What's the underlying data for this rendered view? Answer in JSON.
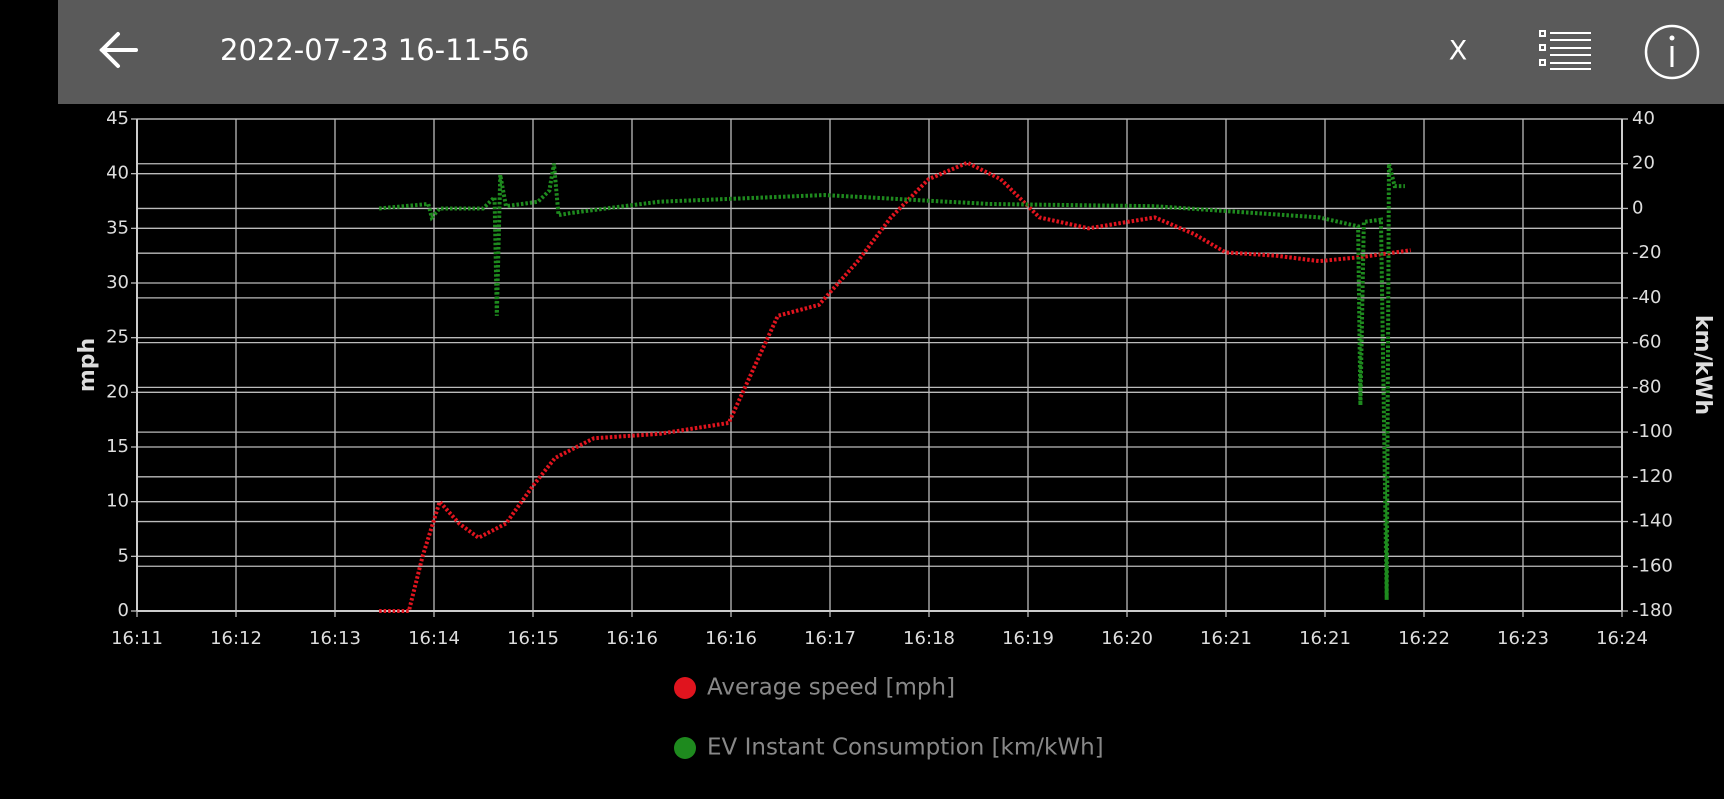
{
  "header": {
    "title": "2022-07-23 16-11-56",
    "close": "X"
  },
  "chart_data": {
    "type": "line",
    "ylabel": "mph",
    "y2label": "km/kWh",
    "xlim": [
      971,
      984
    ],
    "xticks": [
      {
        "value": 971,
        "label": "16:11"
      },
      {
        "value": 971.8667,
        "label": "16:12"
      },
      {
        "value": 972.7333,
        "label": "16:13"
      },
      {
        "value": 973.6,
        "label": "16:14"
      },
      {
        "value": 974.4667,
        "label": "16:15"
      },
      {
        "value": 975.3333,
        "label": "16:16"
      },
      {
        "value": 976.2,
        "label": "16:16"
      },
      {
        "value": 977.0667,
        "label": "16:17"
      },
      {
        "value": 977.9333,
        "label": "16:18"
      },
      {
        "value": 978.8,
        "label": "16:19"
      },
      {
        "value": 979.6667,
        "label": "16:20"
      },
      {
        "value": 980.5333,
        "label": "16:21"
      },
      {
        "value": 981.4,
        "label": "16:21"
      },
      {
        "value": 982.2667,
        "label": "16:22"
      },
      {
        "value": 983.1333,
        "label": "16:23"
      },
      {
        "value": 984,
        "label": "16:24"
      }
    ],
    "ylim": [
      0,
      45
    ],
    "yticks": [
      0,
      5,
      10,
      15,
      20,
      25,
      30,
      35,
      40,
      45
    ],
    "y2lim": [
      -180,
      40
    ],
    "y2ticks": [
      -180,
      -160,
      -140,
      -120,
      -100,
      -80,
      -60,
      -40,
      -20,
      0,
      20,
      40
    ],
    "grid": true,
    "legend": "bottom",
    "series": [
      {
        "name": "Average speed [mph]",
        "color": "#e0141e",
        "x": [
          973.12,
          973.38,
          973.5,
          973.65,
          973.82,
          973.99,
          974.23,
          974.47,
          974.66,
          975.0,
          975.57,
          976.18,
          976.39,
          976.61,
          976.97,
          977.31,
          977.6,
          977.93,
          978.27,
          978.56,
          978.9,
          979.33,
          979.91,
          980.25,
          980.53,
          980.97,
          981.35,
          981.74,
          982.15
        ],
        "values": [
          0,
          0,
          5,
          10,
          8,
          6.7,
          8,
          11.5,
          14,
          15.8,
          16.2,
          17.2,
          22,
          27,
          28,
          32,
          36,
          39.5,
          41,
          39.5,
          36,
          35,
          36,
          34.5,
          32.8,
          32.5,
          32,
          32.4,
          33
        ]
      },
      {
        "name": "EV Instant Consumption [km/kWh]",
        "color": "#1e8a1e",
        "axis": "y2",
        "x": [
          973.12,
          973.55,
          973.58,
          973.65,
          974.03,
          974.13,
          974.15,
          974.18,
          974.23,
          974.51,
          974.61,
          974.65,
          974.69,
          974.8,
          975.57,
          977.02,
          978.46,
          979.91,
          981.35,
          981.69,
          981.71,
          981.74,
          981.89,
          981.94,
          981.96,
          982.01,
          982.1
        ],
        "values": [
          0,
          2,
          -4,
          0,
          0,
          5,
          -48,
          15,
          1,
          3,
          8,
          20,
          -3,
          -2,
          3,
          6,
          2,
          1,
          -4,
          -8,
          -88,
          -6,
          -5,
          -175,
          20,
          10,
          10
        ]
      }
    ]
  }
}
